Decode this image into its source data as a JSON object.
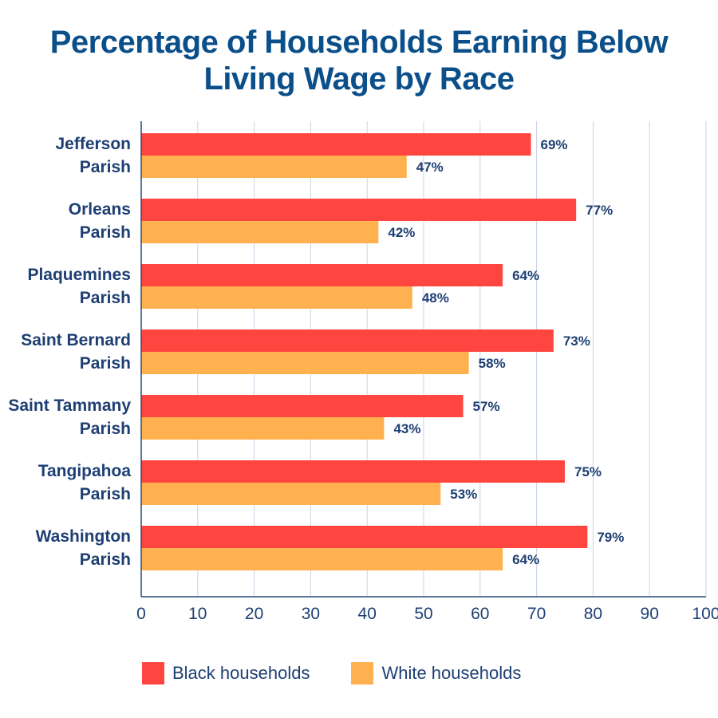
{
  "chart_data": {
    "type": "bar",
    "orientation": "horizontal",
    "title_lines": [
      "Percentage of Households Earning Below",
      "Living Wage by Race"
    ],
    "categories": [
      [
        "Jefferson",
        "Parish"
      ],
      [
        "Orleans",
        "Parish"
      ],
      [
        "Plaquemines",
        "Parish"
      ],
      [
        "Saint Bernard",
        "Parish"
      ],
      [
        "Saint Tammany",
        "Parish"
      ],
      [
        "Tangipahoa",
        "Parish"
      ],
      [
        "Washington",
        "Parish"
      ]
    ],
    "series": [
      {
        "name": "Black households",
        "color": "#ff4540",
        "values": [
          69,
          77,
          64,
          73,
          57,
          75,
          79
        ]
      },
      {
        "name": "White households",
        "color": "#ffb04f",
        "values": [
          47,
          42,
          48,
          58,
          43,
          53,
          64
        ]
      }
    ],
    "value_suffix": "%",
    "xlim": [
      0,
      100
    ],
    "xticks": [
      0,
      10,
      20,
      30,
      40,
      50,
      60,
      70,
      80,
      90,
      100
    ],
    "grid": true,
    "legend_position": "bottom"
  }
}
